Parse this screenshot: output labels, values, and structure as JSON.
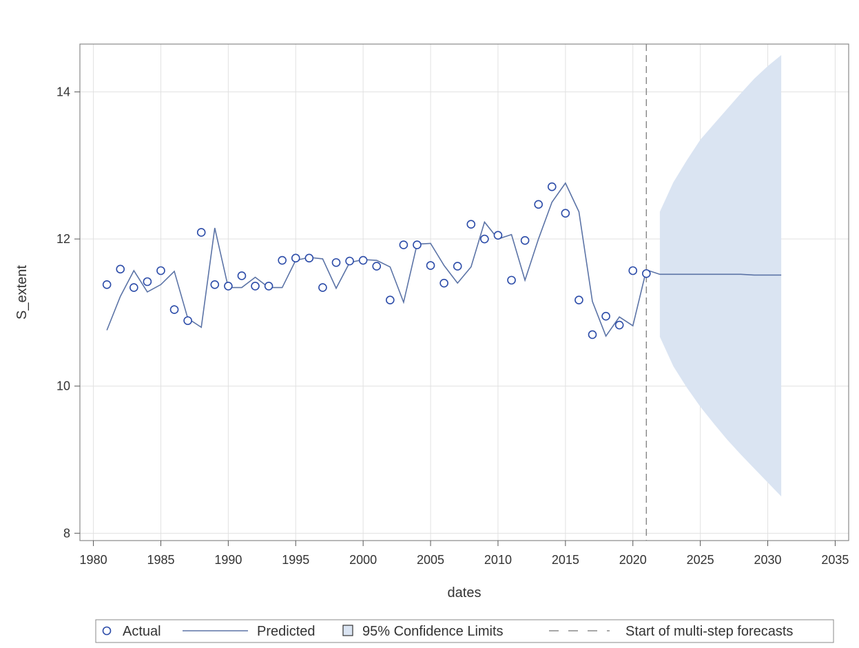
{
  "chart_data": {
    "type": "line",
    "xlabel": "dates",
    "ylabel": "S_extent",
    "xlim": [
      1979,
      2036
    ],
    "ylim": [
      7.9,
      14.65
    ],
    "x_ticks": [
      1980,
      1985,
      1990,
      1995,
      2000,
      2005,
      2010,
      2015,
      2020,
      2025,
      2030,
      2035
    ],
    "y_ticks": [
      8,
      10,
      12,
      14
    ],
    "grid": true,
    "forecast_start": 2021,
    "legend_position": "bottom",
    "legend": {
      "actual": "Actual",
      "predicted": "Predicted",
      "confidence": "95% Confidence Limits",
      "forecast_start": "Start of multi-step forecasts"
    },
    "colors": {
      "series": "#2b4ba8",
      "predicted": "#5b73a6",
      "band": "#dae4f2",
      "grid": "#e1e1e1",
      "refline": "#8a8a8a",
      "frame": "#888888"
    },
    "actual": {
      "name": "Actual",
      "x": [
        1981,
        1982,
        1983,
        1984,
        1985,
        1986,
        1987,
        1988,
        1989,
        1990,
        1991,
        1992,
        1993,
        1994,
        1995,
        1996,
        1997,
        1998,
        1999,
        2000,
        2001,
        2002,
        2003,
        2004,
        2005,
        2006,
        2007,
        2008,
        2009,
        2010,
        2011,
        2012,
        2013,
        2014,
        2015,
        2016,
        2017,
        2018,
        2019,
        2020,
        2021
      ],
      "y": [
        11.38,
        11.59,
        11.34,
        11.42,
        11.57,
        11.04,
        10.89,
        12.09,
        11.38,
        11.36,
        11.5,
        11.36,
        11.36,
        11.71,
        11.74,
        11.74,
        11.34,
        11.68,
        11.7,
        11.71,
        11.63,
        11.17,
        11.92,
        11.92,
        11.64,
        11.4,
        11.63,
        12.2,
        12.0,
        12.05,
        11.44,
        11.98,
        12.47,
        12.71,
        12.35,
        11.17,
        10.7,
        10.95,
        10.83,
        11.57,
        11.53
      ]
    },
    "predicted": {
      "name": "Predicted",
      "x": [
        1981,
        1982,
        1983,
        1984,
        1985,
        1986,
        1987,
        1988,
        1989,
        1990,
        1991,
        1992,
        1993,
        1994,
        1995,
        1996,
        1997,
        1998,
        1999,
        2000,
        2001,
        2002,
        2003,
        2004,
        2005,
        2006,
        2007,
        2008,
        2009,
        2010,
        2011,
        2012,
        2013,
        2014,
        2015,
        2016,
        2017,
        2018,
        2019,
        2020,
        2021,
        2022,
        2023,
        2024,
        2025,
        2026,
        2027,
        2028,
        2029,
        2030,
        2031
      ],
      "y": [
        10.76,
        11.22,
        11.57,
        11.28,
        11.38,
        11.56,
        10.92,
        10.8,
        12.15,
        11.34,
        11.34,
        11.48,
        11.34,
        11.34,
        11.71,
        11.75,
        11.73,
        11.33,
        11.68,
        11.72,
        11.71,
        11.62,
        11.14,
        11.93,
        11.94,
        11.64,
        11.4,
        11.62,
        12.23,
        12.0,
        12.06,
        11.44,
        12.0,
        12.5,
        12.76,
        12.37,
        11.15,
        10.68,
        10.94,
        10.82,
        11.58,
        11.52,
        11.52,
        11.52,
        11.52,
        11.52,
        11.52,
        11.52,
        11.51,
        11.51,
        11.51
      ]
    },
    "confidence_limits": {
      "name": "95% Confidence Limits",
      "x": [
        2022,
        2023,
        2024,
        2025,
        2026,
        2027,
        2028,
        2029,
        2030,
        2031
      ],
      "lower": [
        10.67,
        10.27,
        9.98,
        9.72,
        9.49,
        9.27,
        9.07,
        8.88,
        8.69,
        8.5
      ],
      "upper": [
        12.37,
        12.77,
        13.07,
        13.35,
        13.56,
        13.77,
        13.98,
        14.18,
        14.35,
        14.5
      ]
    }
  }
}
